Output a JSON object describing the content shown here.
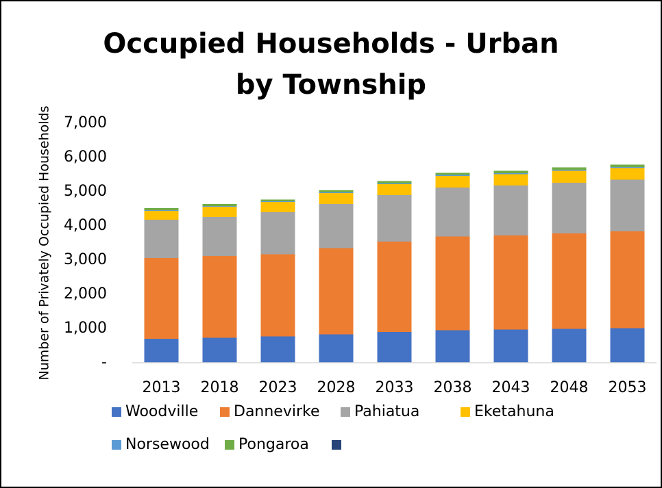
{
  "chart_data": {
    "type": "stacked_bar",
    "title": "Occupied Households - Urban by Township",
    "y_label": "Number of Privately Occupied Households",
    "categories": [
      "2013",
      "2018",
      "2023",
      "2028",
      "2033",
      "2038",
      "2043",
      "2048",
      "2053"
    ],
    "series": [
      {
        "name": "Woodville",
        "color": "#4472c4",
        "values": [
          700,
          730,
          770,
          830,
          900,
          950,
          970,
          990,
          1010
        ]
      },
      {
        "name": "Dannevirke",
        "color": "#ed7d31",
        "values": [
          2360,
          2390,
          2400,
          2520,
          2640,
          2740,
          2750,
          2790,
          2830
        ]
      },
      {
        "name": "Pahiatua",
        "color": "#a5a5a5",
        "values": [
          1120,
          1140,
          1230,
          1290,
          1360,
          1430,
          1460,
          1480,
          1510
        ]
      },
      {
        "name": "Eketahuna",
        "color": "#ffc000",
        "values": [
          260,
          300,
          300,
          320,
          320,
          340,
          330,
          350,
          340
        ]
      },
      {
        "name": "Norsewood",
        "color": "#5b9bd5",
        "values": [
          20,
          20,
          20,
          20,
          20,
          30,
          30,
          30,
          30
        ]
      },
      {
        "name": "Pongaroa",
        "color": "#70ad47",
        "values": [
          60,
          60,
          50,
          60,
          70,
          60,
          70,
          70,
          70
        ]
      }
    ],
    "ylim": [
      0,
      7000
    ],
    "yticks": [
      {
        "value": 0,
        "label": "-"
      },
      {
        "value": 1000,
        "label": "1,000"
      },
      {
        "value": 2000,
        "label": "2,000"
      },
      {
        "value": 3000,
        "label": "3,000"
      },
      {
        "value": 4000,
        "label": "4,000"
      },
      {
        "value": 5000,
        "label": "5,000"
      },
      {
        "value": 6000,
        "label": "6,000"
      },
      {
        "value": 7000,
        "label": "7,000"
      }
    ],
    "grid": false
  }
}
